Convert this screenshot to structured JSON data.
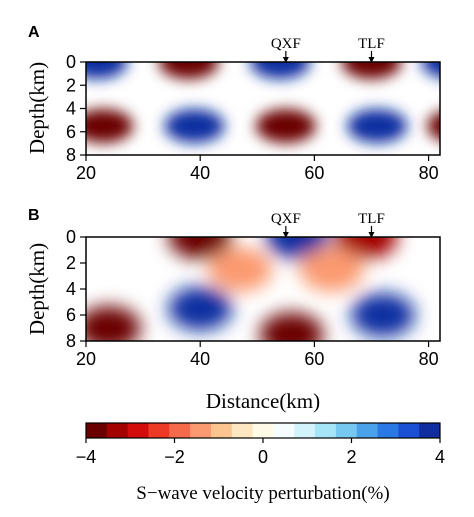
{
  "colormap": [
    "#6b0000",
    "#a30000",
    "#d40b0b",
    "#ec3a24",
    "#f66a4c",
    "#fb9a70",
    "#fcc48f",
    "#fde7c0",
    "#fffbe6",
    "#f5fdff",
    "#d2f3fb",
    "#a6e4f7",
    "#77c8f0",
    "#4aa3ea",
    "#2a78e3",
    "#1b4fd4",
    "#102ea0"
  ],
  "chart_data": [
    {
      "type": "heatmap",
      "panel": "A",
      "xlabel": "",
      "ylabel": "Depth(km)",
      "xlim": [
        20,
        82
      ],
      "ylim": [
        0,
        8
      ],
      "xticks": [
        "20",
        "40",
        "60",
        "80"
      ],
      "yticks": [
        "0",
        "2",
        "4",
        "6",
        "8"
      ],
      "annotations": [
        {
          "text": "QXF",
          "x": 55
        },
        {
          "text": "TLF",
          "x": 70
        }
      ],
      "value_range": [
        -4,
        4
      ],
      "blobs": [
        {
          "x": 38,
          "depth": 0,
          "value": -4
        },
        {
          "x": 54,
          "depth": 0,
          "value": 4
        },
        {
          "x": 70,
          "depth": 0,
          "value": -4
        },
        {
          "x": 22,
          "depth": 0,
          "value": 4
        },
        {
          "x": 84,
          "depth": 0,
          "value": 4
        },
        {
          "x": 23,
          "depth": 5.5,
          "value": -4
        },
        {
          "x": 39,
          "depth": 5.5,
          "value": 4
        },
        {
          "x": 55,
          "depth": 5.5,
          "value": -4
        },
        {
          "x": 71,
          "depth": 5.5,
          "value": 4
        },
        {
          "x": 85,
          "depth": 5.5,
          "value": -4
        }
      ]
    },
    {
      "type": "heatmap",
      "panel": "B",
      "xlabel": "Distance(km)",
      "ylabel": "Depth(km)",
      "xlim": [
        20,
        82
      ],
      "ylim": [
        0,
        8
      ],
      "xticks": [
        "20",
        "40",
        "60",
        "80"
      ],
      "yticks": [
        "0",
        "2",
        "4",
        "6",
        "8"
      ],
      "annotations": [
        {
          "text": "QXF",
          "x": 55
        },
        {
          "text": "TLF",
          "x": 70
        }
      ],
      "value_range": [
        -4,
        4
      ],
      "blobs": [
        {
          "x": 40,
          "depth": 0,
          "value": -4
        },
        {
          "x": 57,
          "depth": 0,
          "value": 4
        },
        {
          "x": 69,
          "depth": 0,
          "value": -3.5
        },
        {
          "x": 47,
          "depth": 2.5,
          "value": -1.5
        },
        {
          "x": 63,
          "depth": 2.5,
          "value": -1.5
        },
        {
          "x": 24,
          "depth": 7,
          "value": -4
        },
        {
          "x": 40,
          "depth": 5.5,
          "value": 4
        },
        {
          "x": 56,
          "depth": 7.5,
          "value": -4
        },
        {
          "x": 72,
          "depth": 6,
          "value": 4
        }
      ]
    }
  ],
  "colorbar": {
    "ticks": [
      "−4",
      "−2",
      "0",
      "2",
      "4"
    ],
    "range": [
      -4,
      4
    ],
    "title": "S−wave velocity perturbation(%)"
  }
}
